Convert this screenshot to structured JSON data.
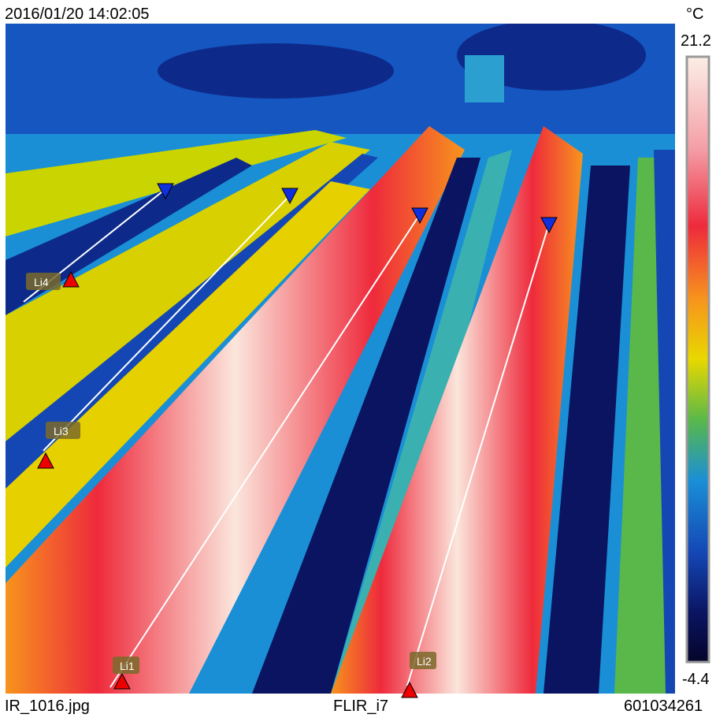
{
  "header": {
    "timestamp": "2016/01/20 14:02:05",
    "unit": "°C"
  },
  "scale": {
    "max": 21.2,
    "min": -4.4
  },
  "footer": {
    "file": "IR_1016.jpg",
    "camera": "FLIR_i7",
    "serial": "601034261"
  },
  "measure_lines": [
    "Li1",
    "Li2",
    "Li3",
    "Li4"
  ]
}
